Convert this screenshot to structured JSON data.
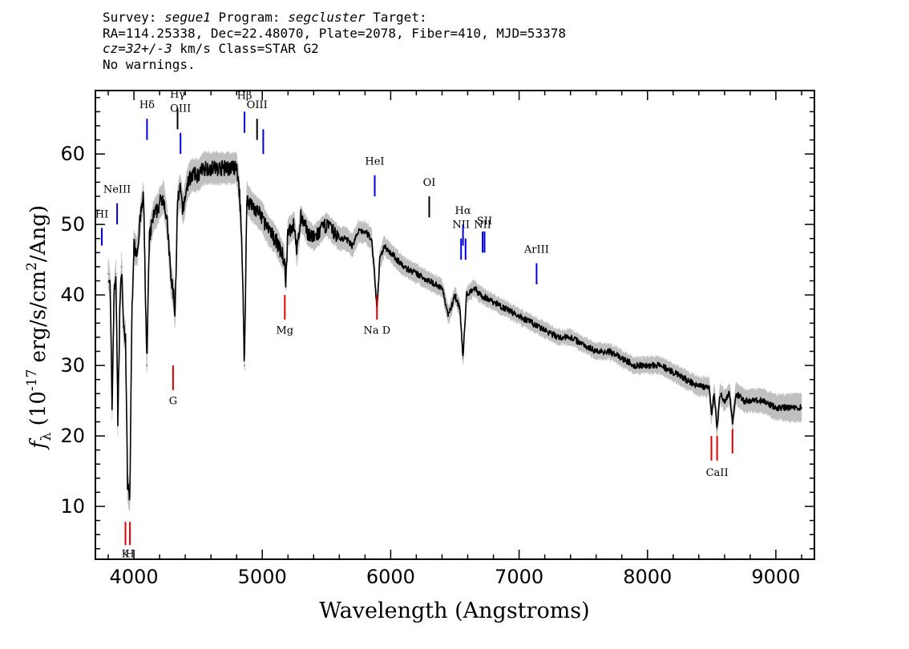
{
  "header": {
    "line1": [
      "Survey: ",
      "segue1",
      " Program: ",
      "segcluster",
      " Target:"
    ],
    "line2": "RA=114.25338, Dec=22.48070, Plate=2078, Fiber=410, MJD=53378",
    "line3": [
      "cz=32+/-3",
      " km/s Class=STAR G2"
    ],
    "line4": "No warnings."
  },
  "chart_data": {
    "type": "line",
    "xlabel": "Wavelength (Angstroms)",
    "ylabel": {
      "prefix": "f",
      "sub": "λ",
      "main": " (10",
      "sup1": "-17",
      "mid": " erg/s/cm",
      "sup2": "2",
      "end": "/Ang)"
    },
    "xlim": [
      3700,
      9300
    ],
    "ylim": [
      2.5,
      69
    ],
    "xticks": [
      4000,
      5000,
      6000,
      7000,
      8000,
      9000
    ],
    "yticks": [
      10,
      20,
      30,
      40,
      50,
      60
    ],
    "series": [
      {
        "color": "#000000",
        "x": [
          3800,
          3815,
          3830,
          3845,
          3860,
          3875,
          3890,
          3905,
          3920,
          3935,
          3950,
          3968,
          3985,
          4000,
          4025,
          4050,
          4075,
          4101,
          4120,
          4150,
          4180,
          4200,
          4230,
          4260,
          4290,
          4310,
          4320,
          4340,
          4360,
          4383,
          4400,
          4420,
          4450,
          4500,
          4550,
          4600,
          4650,
          4700,
          4750,
          4800,
          4820,
          4840,
          4861,
          4880,
          4900,
          4950,
          5000,
          5050,
          5100,
          5150,
          5170,
          5184,
          5200,
          5250,
          5270,
          5300,
          5350,
          5400,
          5450,
          5500,
          5550,
          5600,
          5650,
          5700,
          5750,
          5800,
          5850,
          5870,
          5893,
          5915,
          5950,
          6000,
          6100,
          6200,
          6300,
          6400,
          6450,
          6500,
          6540,
          6563,
          6590,
          6650,
          6700,
          6800,
          6900,
          7000,
          7100,
          7200,
          7300,
          7400,
          7500,
          7600,
          7700,
          7800,
          7900,
          8000,
          8100,
          8200,
          8300,
          8400,
          8480,
          8498,
          8520,
          8542,
          8565,
          8600,
          8640,
          8662,
          8690,
          8750,
          8800,
          8900,
          9000,
          9100,
          9200
        ],
        "values": [
          43,
          41,
          24,
          40,
          43,
          22,
          38,
          44,
          35,
          34,
          13,
          11,
          38,
          47,
          46,
          51,
          54,
          30,
          48,
          51,
          52,
          53,
          54,
          50,
          42,
          40,
          37,
          53,
          55,
          52,
          54,
          56,
          57,
          57,
          58,
          58,
          58,
          58,
          58,
          58,
          55,
          48,
          30,
          54,
          53,
          52,
          51,
          49,
          48,
          46,
          45,
          42,
          49,
          50,
          46,
          51,
          49,
          48,
          49,
          50,
          49,
          48,
          48,
          47,
          49,
          49,
          48,
          44,
          38,
          45,
          47,
          46,
          44,
          43,
          42,
          41,
          37,
          40,
          38,
          31,
          40,
          41,
          40,
          39,
          38,
          37,
          36,
          35,
          34,
          34,
          33,
          32,
          32,
          31,
          30,
          30,
          30,
          29,
          28,
          27,
          27,
          23,
          26,
          21,
          26,
          25,
          26,
          22,
          26,
          25,
          25,
          25,
          24,
          24,
          24
        ]
      },
      {
        "color": "#c0c0c0",
        "band": "error",
        "x": [
          3750,
          4000,
          4500,
          5000,
          5500,
          6000,
          6500,
          7000,
          7500,
          8000,
          8500,
          9000,
          9250
        ],
        "values": [
          2.0,
          2.0,
          2.2,
          2.0,
          1.6,
          1.3,
          1.1,
          1.0,
          1.0,
          1.1,
          1.3,
          1.7,
          2.0
        ]
      }
    ],
    "lines": [
      {
        "label": "HI",
        "x": 3750,
        "color": "blue",
        "y0": 47,
        "y1": 49.5,
        "label_y": 51
      },
      {
        "label": "NeIII",
        "x": 3869,
        "color": "blue",
        "y0": 50,
        "y1": 53,
        "label_y": 54.5
      },
      {
        "label": "Hδ",
        "x": 4102,
        "color": "blue",
        "y0": 62,
        "y1": 65,
        "label_y": 66.5
      },
      {
        "label": "Hγ",
        "x": 4340,
        "color": "black",
        "y0": 63.5,
        "y1": 66.5,
        "label_y": 68
      },
      {
        "label": "OIII",
        "x": 4363,
        "color": "blue",
        "y0": 60,
        "y1": 63,
        "label_y": 66
      },
      {
        "label": "Hβ",
        "x": 4861,
        "color": "blue",
        "y0": 63,
        "y1": 66,
        "label_y": 67.8
      },
      {
        "label": "OIII",
        "x": 4959,
        "color": "black",
        "y0": 62,
        "y1": 65,
        "label_y": 66.5
      },
      {
        "label": "",
        "x": 5007,
        "color": "blue",
        "y0": 60,
        "y1": 63.5,
        "label_y": 0
      },
      {
        "label": "HeI",
        "x": 5876,
        "color": "blue",
        "y0": 54,
        "y1": 57,
        "label_y": 58.5
      },
      {
        "label": "OI",
        "x": 6300,
        "color": "black",
        "y0": 51,
        "y1": 54,
        "label_y": 55.5
      },
      {
        "label": "NII",
        "x": 6548,
        "color": "blue",
        "y0": 45,
        "y1": 48,
        "label_y": 49.5
      },
      {
        "label": "Hα",
        "x": 6563,
        "color": "blue",
        "y0": 47,
        "y1": 50,
        "label_y": 51.5
      },
      {
        "label": "",
        "x": 6583,
        "color": "blue",
        "y0": 45,
        "y1": 48,
        "label_y": 0
      },
      {
        "label": "NII",
        "x": 6716,
        "color": "blue",
        "y0": 46,
        "y1": 49,
        "label_y": 49.5
      },
      {
        "label": "SII",
        "x": 6731,
        "color": "blue",
        "y0": 46,
        "y1": 49,
        "label_y": 50
      },
      {
        "label": "ArIII",
        "x": 7136,
        "color": "blue",
        "y0": 41.5,
        "y1": 44.5,
        "label_y": 46
      },
      {
        "label": "K",
        "x": 3934,
        "color": "red",
        "y0": 4.5,
        "y1": 7.8,
        "label_y": 2.8
      },
      {
        "label": "H",
        "x": 3969,
        "color": "red",
        "y0": 4.5,
        "y1": 7.8,
        "label_y": 2.8
      },
      {
        "label": "G",
        "x": 4305,
        "color": "red",
        "y0": 26.5,
        "y1": 30,
        "label_y": 24.5
      },
      {
        "label": "Mg",
        "x": 5175,
        "color": "red",
        "y0": 36.5,
        "y1": 40,
        "label_y": 34.5
      },
      {
        "label": "Na  D",
        "x": 5893,
        "color": "red",
        "y0": 36.5,
        "y1": 40,
        "label_y": 34.5
      },
      {
        "label": "",
        "x": 8498,
        "color": "red",
        "y0": 16.5,
        "y1": 20,
        "label_y": 0
      },
      {
        "label": "CaII",
        "x": 8542,
        "color": "red",
        "y0": 16.5,
        "y1": 20,
        "label_y": 14.3
      },
      {
        "label": "",
        "x": 8662,
        "color": "red",
        "y0": 17.5,
        "y1": 21,
        "label_y": 0
      }
    ]
  }
}
